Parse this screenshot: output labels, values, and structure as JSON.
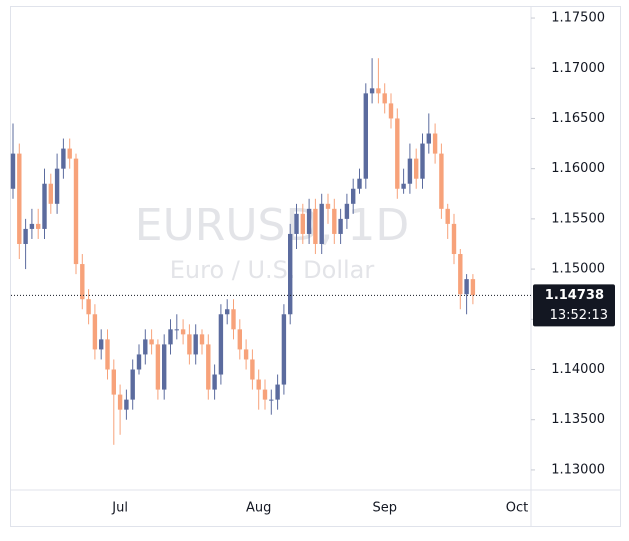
{
  "chart_data": {
    "type": "candlestick",
    "symbol": "EURUSD, 1D",
    "description": "Euro / U.S. Dollar",
    "categories": [
      null,
      null,
      null,
      null,
      null,
      null,
      null,
      null,
      null,
      null,
      null,
      null,
      null,
      null,
      null,
      null,
      null,
      "Jul",
      null,
      null,
      null,
      null,
      null,
      null,
      null,
      null,
      null,
      null,
      null,
      null,
      null,
      null,
      null,
      null,
      null,
      null,
      null,
      null,
      null,
      "Aug",
      null,
      null,
      null,
      null,
      null,
      null,
      null,
      null,
      null,
      null,
      null,
      null,
      null,
      null,
      null,
      null,
      null,
      null,
      null,
      "Sep",
      null,
      null,
      null,
      null,
      null,
      null,
      null,
      null,
      null,
      null,
      null,
      null,
      null,
      null,
      null,
      null,
      null,
      null,
      null,
      null,
      "Oct"
    ],
    "open": [
      1.158,
      1.1615,
      1.1525,
      1.154,
      1.1545,
      1.154,
      1.1585,
      1.1565,
      1.16,
      1.162,
      1.161,
      1.1505,
      1.147,
      1.1455,
      1.142,
      1.143,
      1.14,
      1.1375,
      1.136,
      1.137,
      1.14,
      1.1415,
      1.143,
      1.1425,
      1.138,
      1.1425,
      1.144,
      1.144,
      1.1435,
      1.1415,
      1.1435,
      1.1425,
      1.138,
      1.1395,
      1.1455,
      1.146,
      1.144,
      1.142,
      1.141,
      1.139,
      1.138,
      1.137,
      1.137,
      1.1385,
      1.1455,
      1.1535,
      1.1555,
      1.1535,
      1.156,
      1.1525,
      1.1565,
      1.156,
      1.1535,
      1.155,
      1.1565,
      1.158,
      1.159,
      1.1675,
      1.168,
      1.1675,
      1.1665,
      1.165,
      1.158,
      1.1585,
      1.161,
      1.159,
      1.1625,
      1.1635,
      1.1615,
      1.156,
      1.1545,
      1.1515,
      1.1475,
      1.149,
      null,
      null,
      null,
      null,
      null,
      null,
      null
    ],
    "high": [
      1.1645,
      1.1625,
      1.155,
      1.156,
      1.156,
      1.16,
      1.1595,
      1.1615,
      1.163,
      1.163,
      1.1615,
      1.1515,
      1.148,
      1.1465,
      1.144,
      1.144,
      1.141,
      1.1385,
      1.138,
      1.141,
      1.1425,
      1.144,
      1.144,
      1.143,
      1.1435,
      1.145,
      1.1455,
      1.145,
      1.1445,
      1.1445,
      1.144,
      1.1435,
      1.1405,
      1.1465,
      1.147,
      1.147,
      1.145,
      1.143,
      1.142,
      1.14,
      1.139,
      1.138,
      1.1395,
      1.1465,
      1.1545,
      1.1565,
      1.1565,
      1.157,
      1.157,
      1.1575,
      1.1575,
      1.157,
      1.156,
      1.1575,
      1.159,
      1.16,
      1.1685,
      1.171,
      1.171,
      1.1685,
      1.1675,
      1.166,
      1.16,
      1.1625,
      1.162,
      1.1635,
      1.1655,
      1.1645,
      1.1625,
      1.1565,
      1.1555,
      1.152,
      1.1495,
      1.1495,
      null,
      null,
      null,
      null,
      null,
      null,
      null
    ],
    "low": [
      1.157,
      1.151,
      1.15,
      1.153,
      1.153,
      1.153,
      1.1555,
      1.1555,
      1.159,
      1.16,
      1.1495,
      1.146,
      1.1445,
      1.141,
      1.141,
      1.139,
      1.1325,
      1.1335,
      1.135,
      1.136,
      1.1395,
      1.1405,
      1.1415,
      1.137,
      1.137,
      1.1415,
      1.143,
      1.1425,
      1.1405,
      1.1405,
      1.1415,
      1.137,
      1.137,
      1.1385,
      1.1445,
      1.143,
      1.141,
      1.14,
      1.138,
      1.136,
      1.136,
      1.1355,
      1.136,
      1.1375,
      1.1445,
      1.152,
      1.1525,
      1.1525,
      1.1515,
      1.1515,
      1.1545,
      1.1525,
      1.1525,
      1.154,
      1.1555,
      1.1575,
      1.158,
      1.1665,
      1.1665,
      1.1655,
      1.164,
      1.157,
      1.1575,
      1.1575,
      1.158,
      1.158,
      1.1615,
      1.1605,
      1.155,
      1.153,
      1.1505,
      1.146,
      1.1455,
      1.1465,
      null,
      null,
      null,
      null,
      null,
      null,
      null
    ],
    "close": [
      1.1615,
      1.1525,
      1.154,
      1.1545,
      1.154,
      1.1585,
      1.1565,
      1.16,
      1.162,
      1.161,
      1.1505,
      1.147,
      1.1455,
      1.142,
      1.143,
      1.14,
      1.1375,
      1.136,
      1.137,
      1.14,
      1.1415,
      1.143,
      1.1425,
      1.138,
      1.1425,
      1.144,
      1.144,
      1.1435,
      1.1415,
      1.1435,
      1.1425,
      1.138,
      1.1395,
      1.1455,
      1.146,
      1.144,
      1.142,
      1.141,
      1.139,
      1.138,
      1.137,
      1.137,
      1.1385,
      1.1455,
      1.1535,
      1.1555,
      1.1535,
      1.156,
      1.1525,
      1.1565,
      1.156,
      1.1535,
      1.155,
      1.1565,
      1.158,
      1.159,
      1.1675,
      1.168,
      1.1675,
      1.1665,
      1.165,
      1.158,
      1.1585,
      1.161,
      1.159,
      1.1625,
      1.1635,
      1.1615,
      1.156,
      1.1545,
      1.1515,
      1.1475,
      1.149,
      1.1474,
      null,
      null,
      null,
      null,
      null,
      null,
      null
    ],
    "up_color": "#5b6b9e",
    "down_color": "#f7a27a",
    "last_price": 1.14738,
    "countdown": "13:52:13",
    "ylim": [
      1.128,
      1.176
    ],
    "yticks": [
      {
        "value": 1.13,
        "label": "1.13000"
      },
      {
        "value": 1.135,
        "label": "1.13500"
      },
      {
        "value": 1.14,
        "label": "1.14000"
      },
      {
        "value": 1.145,
        "label": "1.14500"
      },
      {
        "value": 1.15,
        "label": "1.15000"
      },
      {
        "value": 1.155,
        "label": "1.15500"
      },
      {
        "value": 1.16,
        "label": "1.16000"
      },
      {
        "value": 1.165,
        "label": "1.16500"
      },
      {
        "value": 1.17,
        "label": "1.17000"
      },
      {
        "value": 1.175,
        "label": "1.17500"
      }
    ],
    "grid": false
  }
}
